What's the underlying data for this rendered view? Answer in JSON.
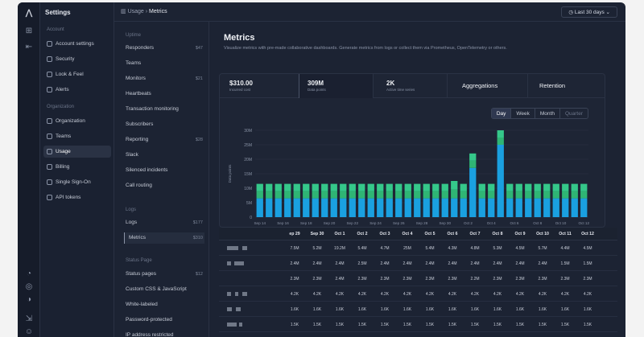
{
  "breadcrumb": {
    "section": "Usage",
    "page": "Metrics"
  },
  "range_label": "Last 30 days",
  "nav": {
    "title": "Settings",
    "account_section": "Account",
    "account_items": [
      "Account settings",
      "Security",
      "Look & Feel",
      "Alerts"
    ],
    "org_section": "Organization",
    "org_items": [
      "Organization",
      "Teams",
      "Usage",
      "Billing",
      "Single Sign-On",
      "API tokens"
    ]
  },
  "sub": {
    "uptime_section": "Uptime",
    "uptime_items": [
      {
        "label": "Responders",
        "value": "$47"
      },
      {
        "label": "Teams",
        "value": ""
      },
      {
        "label": "Monitors",
        "value": "$21"
      },
      {
        "label": "Heartbeats",
        "value": ""
      },
      {
        "label": "Transaction monitoring",
        "value": ""
      },
      {
        "label": "Subscribers",
        "value": ""
      },
      {
        "label": "Reporting",
        "value": "$28"
      },
      {
        "label": "Slack",
        "value": ""
      },
      {
        "label": "Silenced incidents",
        "value": ""
      },
      {
        "label": "Call routing",
        "value": ""
      }
    ],
    "logs_section": "Logs",
    "logs_items": [
      {
        "label": "Logs",
        "value": "$177"
      },
      {
        "label": "Metrics",
        "value": "$310"
      }
    ],
    "status_section": "Status Page",
    "status_items": [
      {
        "label": "Status pages",
        "value": "$12"
      },
      {
        "label": "Custom CSS & JavaScript",
        "value": ""
      },
      {
        "label": "White-labeled",
        "value": ""
      },
      {
        "label": "Password-protected",
        "value": ""
      },
      {
        "label": "IP address restricted",
        "value": ""
      }
    ]
  },
  "main": {
    "title": "Metrics",
    "description": "Visualize metrics with pre-made collaborative dashboards. Generate metrics from logs or collect them via Prometheus, OpenTelemetry or others.",
    "tabs": [
      {
        "big": "$310.00",
        "small": "Incurred cost"
      },
      {
        "big": "309M",
        "small": "Data points"
      },
      {
        "big": "2K",
        "small": "Active time series"
      },
      {
        "big": "Aggregations",
        "small": ""
      },
      {
        "big": "Retention",
        "small": ""
      }
    ],
    "periods": [
      "Day",
      "Week",
      "Month",
      "Quarter"
    ]
  },
  "chart_data": {
    "type": "bar",
    "ylabel": "Data points",
    "ylim": [
      0,
      30
    ],
    "yticks": [
      "0",
      "5M",
      "10M",
      "15M",
      "20M",
      "25M",
      "30M"
    ],
    "xticks": [
      "Sep 14",
      "Sep 16",
      "Sep 18",
      "Sep 20",
      "Sep 22",
      "Sep 24",
      "Sep 26",
      "Sep 28",
      "Sep 30",
      "Oct 2",
      "Oct 4",
      "Oct 6",
      "Oct 8",
      "Oct 10",
      "Oct 12"
    ],
    "series": [
      {
        "name": "base",
        "color": "#1aa0e0",
        "values": [
          6.5,
          6.5,
          6.5,
          6.5,
          6.5,
          6.5,
          6.5,
          6.5,
          6.5,
          6.5,
          6.5,
          6.5,
          6.5,
          6.5,
          6.5,
          6.5,
          6.5,
          6.5,
          6.5,
          6.5,
          6.5,
          6.5,
          6.5,
          17,
          6.5,
          6.5,
          25,
          6.5,
          6.5,
          6.5,
          6.5,
          6.5,
          6.5,
          6.5,
          6.5,
          6.5
        ]
      },
      {
        "name": "mid",
        "color": "#2fb574",
        "values": [
          2.5,
          2.5,
          2.5,
          2.5,
          2.5,
          2.5,
          2.5,
          2.5,
          2.5,
          2.5,
          2.5,
          2.5,
          2.5,
          2.5,
          2.5,
          2.5,
          2.5,
          2.5,
          2.5,
          2.5,
          2.5,
          3,
          2.5,
          2.5,
          2.5,
          2.5,
          2.5,
          2.5,
          2.5,
          2.5,
          2.5,
          2.5,
          2.5,
          2.5,
          2.5,
          2.5
        ]
      },
      {
        "name": "top",
        "color": "#35c88a",
        "values": [
          2.5,
          2.5,
          2.5,
          2.5,
          2.5,
          2.5,
          2.5,
          2.5,
          2.5,
          2.5,
          2.5,
          2.5,
          2.5,
          2.5,
          2.5,
          2.5,
          2.5,
          2.5,
          2.5,
          2.5,
          2.5,
          3,
          2.5,
          2.5,
          2.5,
          2.5,
          2.5,
          2.5,
          2.5,
          2.5,
          2.5,
          2.5,
          2.5,
          2.5,
          2.5,
          2.5
        ]
      }
    ]
  },
  "table": {
    "columns": [
      "ep 29",
      "Sep 30",
      "Oct 1",
      "Oct 2",
      "Oct 3",
      "Oct 4",
      "Oct 5",
      "Oct 6",
      "Oct 7",
      "Oct 8",
      "Oct 9",
      "Oct 10",
      "Oct 11",
      "Oct 12"
    ],
    "rows": [
      [
        "7.5M",
        "5.2M",
        "19.2M",
        "5.4M",
        "4.7M",
        "25M",
        "5.4M",
        "4.3M",
        "4.8M",
        "5.3M",
        "4.5M",
        "5.7M",
        "4.4M",
        "4.5M"
      ],
      [
        "2.4M",
        "2.4M",
        "2.4M",
        "2.5M",
        "2.4M",
        "2.4M",
        "2.4M",
        "2.4M",
        "2.4M",
        "2.4M",
        "2.4M",
        "2.4M",
        "1.5M",
        "1.5M"
      ],
      [
        "2.3M",
        "2.3M",
        "2.4M",
        "2.3M",
        "2.3M",
        "2.3M",
        "2.3M",
        "2.3M",
        "2.2M",
        "2.3M",
        "2.3M",
        "2.3M",
        "2.3M",
        "2.3M"
      ],
      [
        "4.2K",
        "4.2K",
        "4.2K",
        "4.2K",
        "4.2K",
        "4.2K",
        "4.2K",
        "4.2K",
        "4.2K",
        "4.2K",
        "4.2K",
        "4.2K",
        "4.2K",
        "4.2K"
      ],
      [
        "1.6K",
        "1.6K",
        "1.6K",
        "1.6K",
        "1.6K",
        "1.6K",
        "1.6K",
        "1.6K",
        "1.6K",
        "1.6K",
        "1.6K",
        "1.6K",
        "1.6K",
        "1.6K"
      ],
      [
        "1.5K",
        "1.5K",
        "1.5K",
        "1.5K",
        "1.5K",
        "1.5K",
        "1.5K",
        "1.5K",
        "1.5K",
        "1.5K",
        "1.5K",
        "1.5K",
        "1.5K",
        "1.5K"
      ],
      [
        "1.3K",
        "1.3K",
        "1.3K",
        "1.3K",
        "1.3K",
        "1.3K",
        "1.3K",
        "1.3K",
        "1.3K",
        "1.3K",
        "1.3K",
        "1.3K",
        "1.3K",
        "1.3K"
      ]
    ]
  }
}
